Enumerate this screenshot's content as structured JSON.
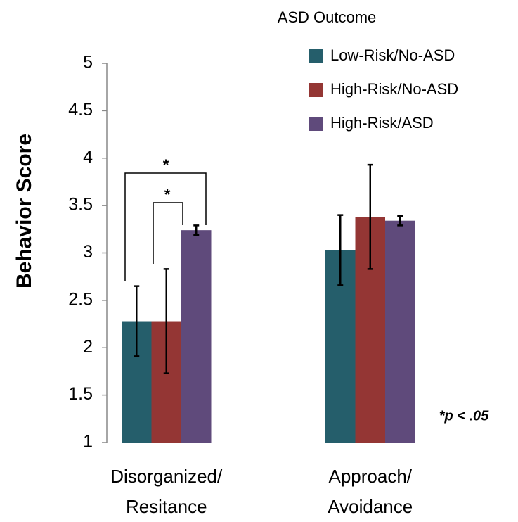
{
  "chart_data": {
    "type": "bar",
    "ylabel": "Behavior Score",
    "legend_title": "ASD Outcome",
    "categories": [
      "Disorganized/\nResitance",
      "Approach/\nAvoidance"
    ],
    "series": [
      {
        "name": "Low-Risk/No-ASD",
        "color": "#255e6b",
        "values": [
          2.28,
          3.03
        ],
        "errors": [
          0.37,
          0.37
        ]
      },
      {
        "name": "High-Risk/No-ASD",
        "color": "#943634",
        "values": [
          2.28,
          3.38
        ],
        "errors": [
          0.55,
          0.55
        ]
      },
      {
        "name": "High-Risk/ASD",
        "color": "#5f4a7b",
        "values": [
          3.24,
          3.34
        ],
        "errors": [
          0.05,
          0.05
        ]
      }
    ],
    "annotations": [
      "*",
      "*",
      "*p < .05"
    ],
    "ylim": [
      1,
      5
    ],
    "yticks": [
      1,
      1.5,
      2,
      2.5,
      3,
      3.5,
      4,
      4.5,
      5
    ],
    "grid": false
  }
}
